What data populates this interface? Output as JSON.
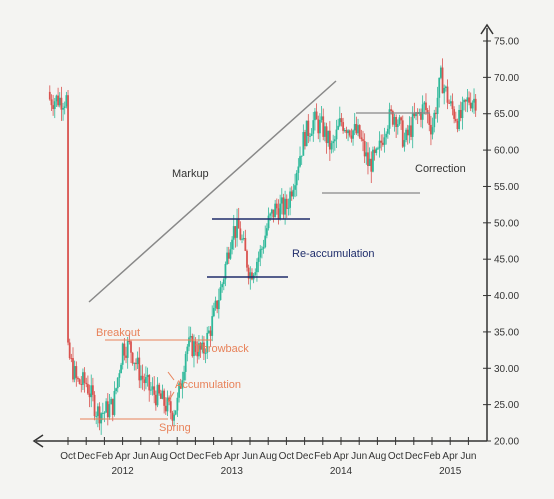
{
  "chart_data": {
    "type": "candlestick",
    "y_ticks": [
      "20.00",
      "25.00",
      "30.00",
      "35.00",
      "40.00",
      "45.00",
      "50.00",
      "55.00",
      "60.00",
      "65.00",
      "70.00",
      "75.00"
    ],
    "ylim": [
      20,
      75
    ],
    "x_ticks": [
      "Oct",
      "Dec",
      "Feb",
      "Apr",
      "Jun",
      "Aug",
      "Oct",
      "Dec",
      "Feb",
      "Apr",
      "Jun",
      "Aug",
      "Oct",
      "Dec",
      "Feb",
      "Apr",
      "Jun",
      "Aug",
      "Oct",
      "Dec",
      "Feb",
      "Apr",
      "Jun"
    ],
    "x_years": [
      {
        "label": "2012",
        "tick_index": 3
      },
      {
        "label": "2013",
        "tick_index": 9
      },
      {
        "label": "2014",
        "tick_index": 15
      },
      {
        "label": "2015",
        "tick_index": 21
      }
    ],
    "annotations": {
      "markup": "Markup",
      "breakout": "Breakout",
      "throwback": "Throwback",
      "accumulation": "Accumulation",
      "spring": "Spring",
      "reaccumulation": "Re-accumulation",
      "correction": "Correction"
    },
    "price_path": [
      [
        0,
        32
      ],
      [
        0.5,
        28
      ],
      [
        1,
        28
      ],
      [
        1.6,
        24
      ],
      [
        2,
        24
      ],
      [
        2.5,
        25
      ],
      [
        3,
        33
      ],
      [
        3.4,
        33
      ],
      [
        4,
        29
      ],
      [
        4.5,
        27
      ],
      [
        5,
        26
      ],
      [
        5.7,
        24
      ],
      [
        6,
        25
      ],
      [
        6.5,
        33
      ],
      [
        7,
        33
      ],
      [
        7.4,
        32
      ],
      [
        8,
        37
      ],
      [
        8.5,
        42
      ],
      [
        9,
        49
      ],
      [
        9.4,
        49
      ],
      [
        9.8,
        45
      ],
      [
        10,
        43
      ],
      [
        10.6,
        46
      ],
      [
        11,
        50
      ],
      [
        11.4,
        52
      ],
      [
        12,
        52
      ],
      [
        12.5,
        57
      ],
      [
        13,
        62
      ],
      [
        13.5,
        64
      ],
      [
        14,
        63
      ],
      [
        14.5,
        60
      ],
      [
        15,
        64
      ],
      [
        15.5,
        63
      ],
      [
        16,
        62
      ],
      [
        16.5,
        58
      ],
      [
        17,
        59
      ],
      [
        17.5,
        64
      ],
      [
        18,
        65
      ],
      [
        18.5,
        61
      ],
      [
        19,
        64
      ],
      [
        19.6,
        66
      ],
      [
        20,
        63
      ],
      [
        20.5,
        70
      ],
      [
        21,
        66
      ],
      [
        21.5,
        64
      ],
      [
        22,
        67
      ],
      [
        22.4,
        67
      ]
    ],
    "colors": {
      "up": "#2eb89a",
      "down": "#d9534f",
      "grid_line": "#888888",
      "navy": "#1f2d6b",
      "orange": "#e8825a",
      "axis": "#333333"
    }
  }
}
